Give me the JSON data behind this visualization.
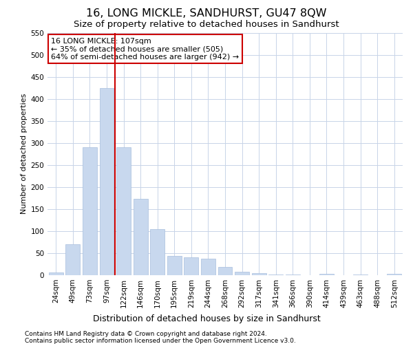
{
  "title": "16, LONG MICKLE, SANDHURST, GU47 8QW",
  "subtitle": "Size of property relative to detached houses in Sandhurst",
  "xlabel": "Distribution of detached houses by size in Sandhurst",
  "ylabel": "Number of detached properties",
  "bar_color": "#c8d8ee",
  "bar_edge_color": "#a8bedd",
  "bar_categories": [
    "24sqm",
    "49sqm",
    "73sqm",
    "97sqm",
    "122sqm",
    "146sqm",
    "170sqm",
    "195sqm",
    "219sqm",
    "244sqm",
    "268sqm",
    "292sqm",
    "317sqm",
    "341sqm",
    "366sqm",
    "390sqm",
    "414sqm",
    "439sqm",
    "463sqm",
    "488sqm",
    "512sqm"
  ],
  "bar_values": [
    7,
    70,
    290,
    425,
    290,
    173,
    105,
    43,
    40,
    37,
    19,
    8,
    4,
    2,
    1,
    0,
    3,
    0,
    1,
    0,
    3
  ],
  "ylim": [
    0,
    550
  ],
  "yticks": [
    0,
    50,
    100,
    150,
    200,
    250,
    300,
    350,
    400,
    450,
    500,
    550
  ],
  "vline_x": 3.5,
  "vline_color": "#cc0000",
  "annotation_title": "16 LONG MICKLE: 107sqm",
  "annotation_line1": "← 35% of detached houses are smaller (505)",
  "annotation_line2": "64% of semi-detached houses are larger (942) →",
  "annotation_box_color": "#ffffff",
  "annotation_box_edge": "#cc0000",
  "bg_color": "#ffffff",
  "grid_color": "#c8d4e8",
  "footer_line1": "Contains HM Land Registry data © Crown copyright and database right 2024.",
  "footer_line2": "Contains public sector information licensed under the Open Government Licence v3.0.",
  "title_fontsize": 11.5,
  "subtitle_fontsize": 9.5,
  "xlabel_fontsize": 9,
  "ylabel_fontsize": 8,
  "tick_fontsize": 7.5,
  "annotation_fontsize": 8,
  "footer_fontsize": 6.5
}
